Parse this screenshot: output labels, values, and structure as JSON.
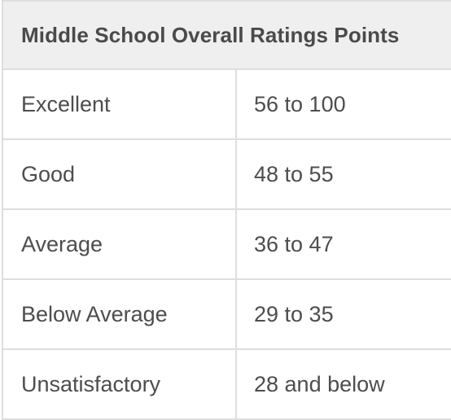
{
  "table": {
    "header": "Middle School Overall Ratings Points",
    "rows": [
      {
        "rating": "Excellent",
        "points": "56 to 100"
      },
      {
        "rating": "Good",
        "points": "48 to 55"
      },
      {
        "rating": "Average",
        "points": "36 to 47"
      },
      {
        "rating": "Below Average",
        "points": "29 to 35"
      },
      {
        "rating": "Unsatisfactory",
        "points": "28 and below"
      }
    ]
  }
}
